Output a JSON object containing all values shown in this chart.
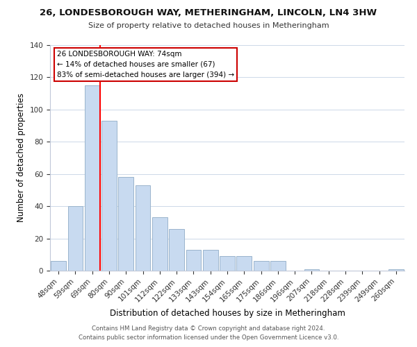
{
  "title": "26, LONDESBOROUGH WAY, METHERINGHAM, LINCOLN, LN4 3HW",
  "subtitle": "Size of property relative to detached houses in Metheringham",
  "xlabel": "Distribution of detached houses by size in Metheringham",
  "ylabel": "Number of detached properties",
  "bar_labels": [
    "48sqm",
    "59sqm",
    "69sqm",
    "80sqm",
    "90sqm",
    "101sqm",
    "112sqm",
    "122sqm",
    "133sqm",
    "143sqm",
    "154sqm",
    "165sqm",
    "175sqm",
    "186sqm",
    "196sqm",
    "207sqm",
    "218sqm",
    "228sqm",
    "239sqm",
    "249sqm",
    "260sqm"
  ],
  "bar_values": [
    6,
    40,
    115,
    93,
    58,
    53,
    33,
    26,
    13,
    13,
    9,
    9,
    6,
    6,
    0,
    1,
    0,
    0,
    0,
    0,
    1
  ],
  "bar_color": "#c8daf0",
  "bar_edge_color": "#9ab4cc",
  "vline_color": "#ff0000",
  "ylim": [
    0,
    140
  ],
  "yticks": [
    0,
    20,
    40,
    60,
    80,
    100,
    120,
    140
  ],
  "annotation_title": "26 LONDESBOROUGH WAY: 74sqm",
  "annotation_line1": "← 14% of detached houses are smaller (67)",
  "annotation_line2": "83% of semi-detached houses are larger (394) →",
  "annotation_box_color": "#ffffff",
  "annotation_box_edge": "#cc0000",
  "footer1": "Contains HM Land Registry data © Crown copyright and database right 2024.",
  "footer2": "Contains public sector information licensed under the Open Government Licence v3.0.",
  "background_color": "#ffffff",
  "grid_color": "#ccd8e8"
}
